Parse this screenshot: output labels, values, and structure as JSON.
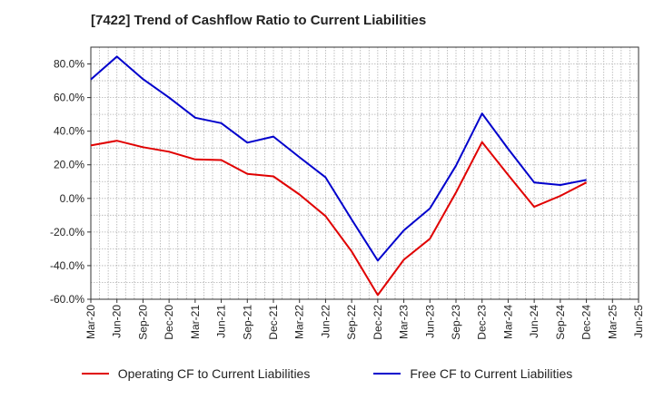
{
  "chart_data": {
    "type": "line",
    "title": "[7422]  Trend of Cashflow Ratio to Current Liabilities",
    "xlabel": "",
    "ylabel": "",
    "categories": [
      "Mar-20",
      "Jun-20",
      "Sep-20",
      "Dec-20",
      "Mar-21",
      "Jun-21",
      "Sep-21",
      "Dec-21",
      "Mar-22",
      "Jun-22",
      "Sep-22",
      "Dec-22",
      "Mar-23",
      "Jun-23",
      "Sep-23",
      "Dec-23",
      "Mar-24",
      "Jun-24",
      "Sep-24",
      "Dec-24",
      "Mar-25",
      "Jun-25"
    ],
    "ylim": [
      -60,
      90
    ],
    "yticks": [
      -60,
      -40,
      -20,
      0,
      20,
      40,
      60,
      80
    ],
    "ytick_labels": [
      "-60.0%",
      "-40.0%",
      "-20.0%",
      "0.0%",
      "20.0%",
      "40.0%",
      "60.0%",
      "80.0%"
    ],
    "grid": true,
    "legend_position": "bottom",
    "series": [
      {
        "name": "Operating CF to Current Liabilities",
        "color": "#e00000",
        "values": [
          31.5,
          34.3,
          30.5,
          27.8,
          23.2,
          22.8,
          14.6,
          13.1,
          2.3,
          -10.5,
          -31.5,
          -57.5,
          -36.5,
          -24.0,
          3.5,
          33.5,
          14.0,
          -5.0,
          1.5,
          9.5,
          null,
          null
        ]
      },
      {
        "name": "Free CF to Current Liabilities",
        "color": "#0000cc",
        "values": [
          70.8,
          84.4,
          71.0,
          60.0,
          48.0,
          44.8,
          33.2,
          36.8,
          24.5,
          12.5,
          -12.5,
          -37.0,
          -19.0,
          -6.0,
          19.5,
          50.5,
          29.5,
          9.5,
          8.0,
          11.0,
          null,
          null
        ]
      }
    ]
  }
}
